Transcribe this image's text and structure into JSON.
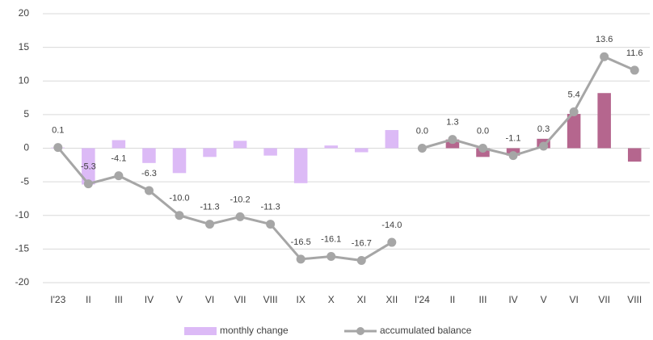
{
  "chart_data": {
    "type": "bar_line",
    "categories": [
      "I'23",
      "II",
      "III",
      "IV",
      "V",
      "VI",
      "VII",
      "VIII",
      "IX",
      "X",
      "XI",
      "XII",
      "I'24",
      "II",
      "III",
      "IV",
      "V",
      "VI",
      "VII",
      "VIII"
    ],
    "series": [
      {
        "name": "monthly change",
        "type": "bar",
        "color": "#dcbaf6",
        "colors": [
          "#dcbaf6",
          "#dcbaf6",
          "#dcbaf6",
          "#dcbaf6",
          "#dcbaf6",
          "#dcbaf6",
          "#dcbaf6",
          "#dcbaf6",
          "#dcbaf6",
          "#dcbaf6",
          "#dcbaf6",
          "#dcbaf6",
          "#b5668e",
          "#b5668e",
          "#b5668e",
          "#b5668e",
          "#b5668e",
          "#b5668e",
          "#b5668e",
          "#b5668e"
        ],
        "values": [
          0.1,
          -5.4,
          1.2,
          -2.2,
          -3.7,
          -1.3,
          1.1,
          -1.1,
          -5.2,
          0.4,
          -0.6,
          2.7,
          0.0,
          1.3,
          -1.3,
          -1.1,
          1.4,
          5.1,
          8.2,
          -2.0
        ]
      },
      {
        "name": "accumulated balance",
        "type": "line",
        "color": "#a6a6a6",
        "breaks": [
          12
        ],
        "values": [
          0.1,
          -5.3,
          -4.1,
          -6.3,
          -10.0,
          -11.3,
          -10.2,
          -11.3,
          -16.5,
          -16.1,
          -16.7,
          -14.0,
          0.0,
          1.3,
          0.0,
          -1.1,
          0.3,
          5.4,
          13.6,
          11.6
        ],
        "value_labels": [
          "0.1",
          "-5.3",
          "-4.1",
          "-6.3",
          "-10.0",
          "-11.3",
          "-10.2",
          "-11.3",
          "-16.5",
          "-16.1",
          "-16.7",
          "-14.0",
          "0.0",
          "1.3",
          "0.0",
          "-1.1",
          "0.3",
          "5.4",
          "13.6",
          "11.6"
        ]
      }
    ],
    "ylim": [
      -20,
      20
    ],
    "yticks": [
      -20,
      -15,
      -10,
      -5,
      0,
      5,
      10,
      15,
      20
    ],
    "grid": true,
    "legend": "bottom"
  }
}
